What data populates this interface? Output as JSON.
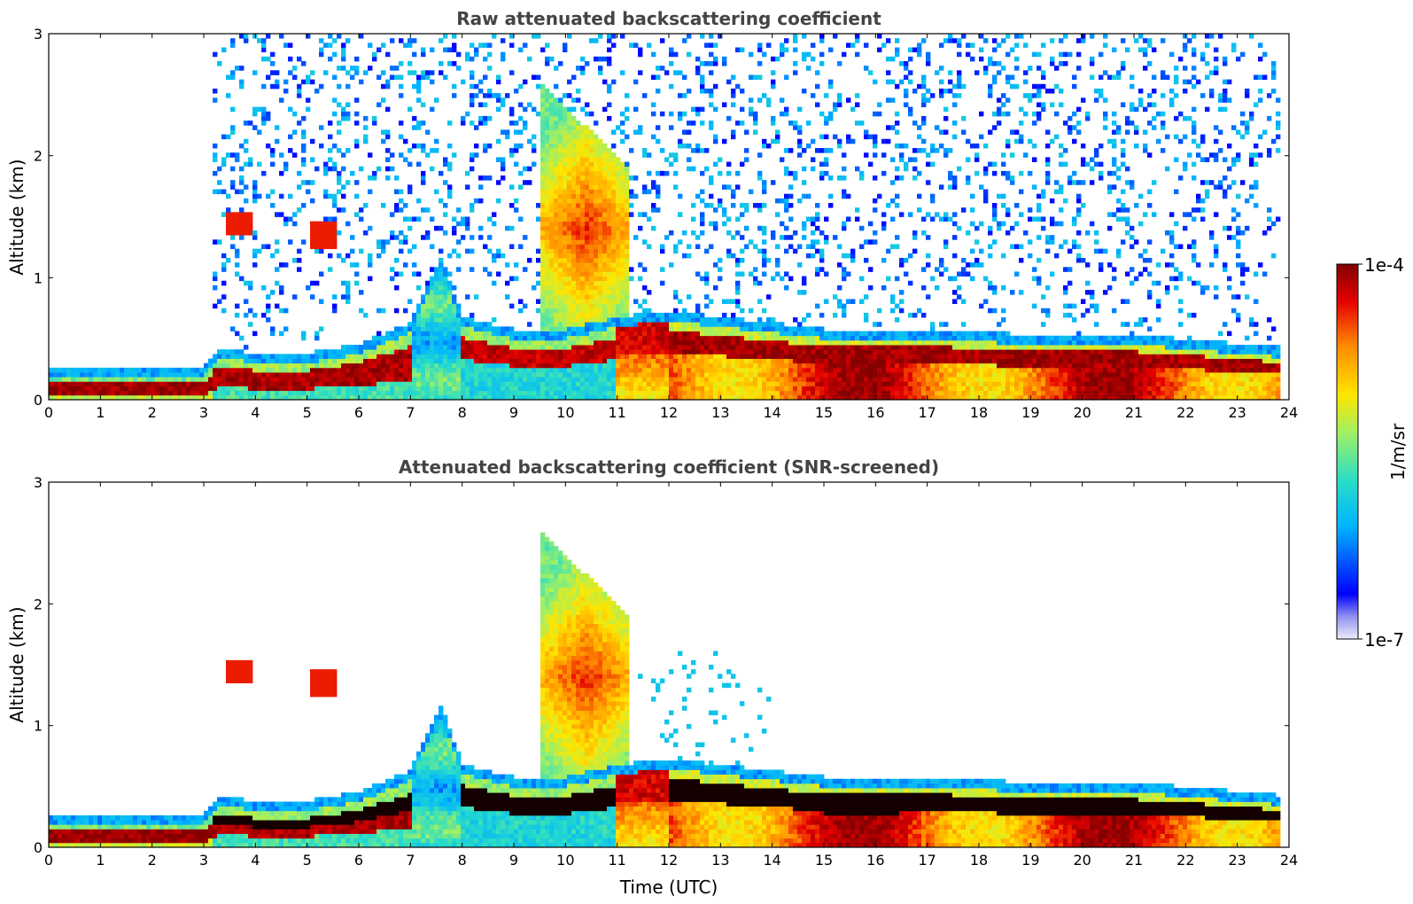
{
  "chart_data": [
    {
      "type": "heatmap",
      "title": "Raw attenuated backscattering coefficient",
      "xlabel": "",
      "ylabel": "Altitude (km)",
      "xlim": [
        0,
        24
      ],
      "ylim": [
        0,
        3
      ],
      "x_ticks": [
        "0",
        "1",
        "2",
        "3",
        "4",
        "5",
        "6",
        "7",
        "8",
        "9",
        "10",
        "11",
        "12",
        "13",
        "14",
        "15",
        "16",
        "17",
        "18",
        "19",
        "20",
        "21",
        "22",
        "23",
        "24"
      ],
      "y_ticks": [
        "0",
        "1",
        "2",
        "3"
      ],
      "screened": false,
      "features": {
        "boundary_layer_top_km": [
          [
            0,
            0.18
          ],
          [
            1,
            0.18
          ],
          [
            2,
            0.18
          ],
          [
            3,
            0.2
          ],
          [
            3.3,
            0.35
          ],
          [
            4,
            0.3
          ],
          [
            5,
            0.3
          ],
          [
            6,
            0.38
          ],
          [
            7,
            0.55
          ],
          [
            7.6,
            1.1
          ],
          [
            8,
            0.6
          ],
          [
            9,
            0.5
          ],
          [
            10,
            0.5
          ],
          [
            11,
            0.6
          ],
          [
            12,
            0.65
          ],
          [
            13,
            0.6
          ],
          [
            14,
            0.55
          ],
          [
            15,
            0.5
          ],
          [
            16,
            0.5
          ],
          [
            17,
            0.5
          ],
          [
            18,
            0.48
          ],
          [
            19,
            0.45
          ],
          [
            20,
            0.45
          ],
          [
            21,
            0.45
          ],
          [
            22,
            0.42
          ],
          [
            23,
            0.38
          ],
          [
            23.8,
            0.35
          ]
        ],
        "elevated_plume": {
          "time_start": 9.5,
          "time_end": 11.2,
          "top_km": 2.6,
          "peak_time": 10.4,
          "peak_km": 1.4
        },
        "elevated_aerosol_layers": [
          {
            "time": 3.7,
            "altitude_km": 1.45
          },
          {
            "time": 5.3,
            "altitude_km": 1.35
          }
        ]
      }
    },
    {
      "type": "heatmap",
      "title": "Attenuated backscattering coefficient (SNR-screened)",
      "xlabel": "Time (UTC)",
      "ylabel": "Altitude (km)",
      "xlim": [
        0,
        24
      ],
      "ylim": [
        0,
        3
      ],
      "x_ticks": [
        "0",
        "1",
        "2",
        "3",
        "4",
        "5",
        "6",
        "7",
        "8",
        "9",
        "10",
        "11",
        "12",
        "13",
        "14",
        "15",
        "16",
        "17",
        "18",
        "19",
        "20",
        "21",
        "22",
        "23",
        "24"
      ],
      "y_ticks": [
        "0",
        "1",
        "2",
        "3"
      ],
      "screened": true
    }
  ],
  "colorbar": {
    "label": "1/m/sr",
    "min_label": "1e-7",
    "max_label": "1e-4",
    "scale": "log",
    "min": 1e-07,
    "max": 0.0001,
    "colormap": [
      "#ececfa",
      "#0000ff",
      "#00b4ff",
      "#28dcc8",
      "#a0f064",
      "#ffe600",
      "#ff8c00",
      "#e60000",
      "#820000"
    ]
  },
  "colors": {
    "title_text": "#444444",
    "axes": "#000000",
    "background": "#ffffff"
  }
}
